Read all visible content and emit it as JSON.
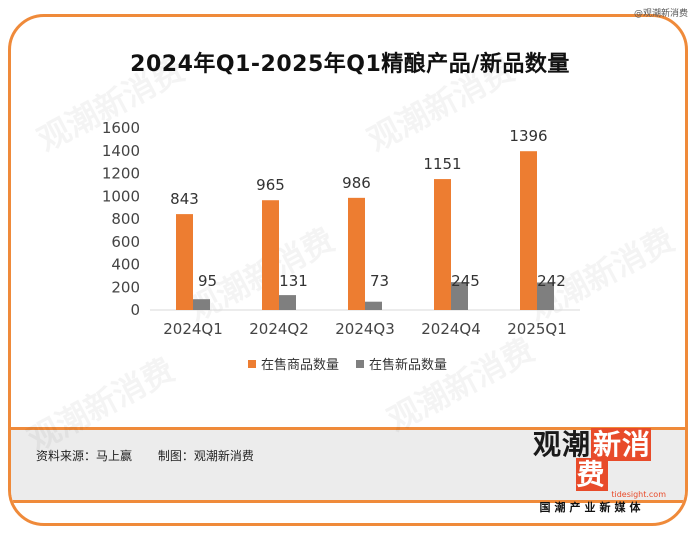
{
  "corner_text": "@观潮新消费",
  "source": {
    "data_source": "资料来源：马上赢",
    "made_by": "制图：观潮新消费"
  },
  "logo": {
    "main_a": "观潮",
    "main_b": "新消费",
    "url": "tidesight.com",
    "tagline": "国潮产业新媒体"
  },
  "colors": {
    "accent": "#ef8a3a",
    "bar_series_1": "#ed7d31",
    "bar_series_2": "#7f7f7f"
  },
  "chart_data": {
    "type": "bar",
    "title": "2024年Q1-2025年Q1精酿产品/新品数量",
    "categories": [
      "2024Q1",
      "2024Q2",
      "2024Q3",
      "2024Q4",
      "2025Q1"
    ],
    "series": [
      {
        "name": "在售商品数量",
        "values": [
          843,
          965,
          986,
          1151,
          1396
        ],
        "color": "#ed7d31"
      },
      {
        "name": "在售新品数量",
        "values": [
          95,
          131,
          73,
          245,
          242
        ],
        "color": "#7f7f7f"
      }
    ],
    "yticks": [
      0,
      200,
      400,
      600,
      800,
      1000,
      1200,
      1400,
      1600
    ],
    "ylim": [
      0,
      1600
    ],
    "xlabel": "",
    "ylabel": "",
    "grid": false,
    "legend": "bottom"
  }
}
